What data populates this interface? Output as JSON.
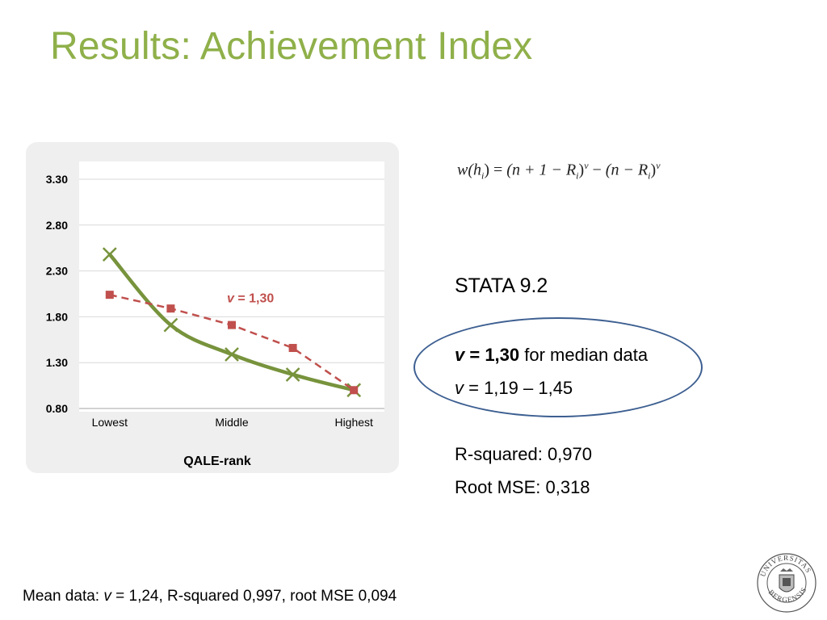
{
  "title": "Results: Achievement Index",
  "formula": {
    "lhs": "w(h",
    "lhs_sub": "i",
    "rhs1": "(n + 1 − R",
    "rhs2": "(n − R",
    "exp": "v",
    "eq": "=",
    "minus": "−"
  },
  "stata": "STATA 9.2",
  "highlight": {
    "line1_v": "v",
    "line1_value": " = 1,30",
    "line1_rest": " for median data",
    "line2_v": "v",
    "line2_rest": " = 1,19 – 1,45"
  },
  "stats": {
    "rsquared": "R-squared: 0,970",
    "rmse": "Root MSE: 0,318"
  },
  "footer": {
    "prefix": "Mean data: ",
    "v": "v",
    "rest": " = 1,24, R-squared 0,997, root MSE 0,094"
  },
  "seal_text": "UNIVERSITAS BERGENSIS",
  "chart_data": {
    "type": "line",
    "xlabel": "QALE-rank",
    "ylabel": "",
    "ylim": [
      0.8,
      3.3
    ],
    "yticks": [
      "3.30",
      "2.80",
      "2.30",
      "1.80",
      "1.30",
      "0.80"
    ],
    "ytick_values": [
      3.3,
      2.8,
      2.3,
      1.8,
      1.3,
      0.8
    ],
    "x": [
      1,
      2,
      3,
      4,
      5
    ],
    "x_tick_labels": [
      {
        "x": 1,
        "label": "Lowest"
      },
      {
        "x": 3,
        "label": "Middle"
      },
      {
        "x": 5,
        "label": "Highest"
      }
    ],
    "grid": true,
    "series": [
      {
        "style": "solid",
        "marker": "x",
        "color": "#77933c",
        "values": [
          2.48,
          1.71,
          1.39,
          1.17,
          1.0
        ]
      },
      {
        "style": "dashed",
        "marker": "square",
        "color": "#c0504d",
        "values": [
          2.04,
          1.89,
          1.71,
          1.46,
          1.0
        ]
      }
    ],
    "annotation": {
      "v": "v",
      "text": " = 1,30",
      "color": "#c0504d",
      "x": 3,
      "y": 2.0
    }
  }
}
